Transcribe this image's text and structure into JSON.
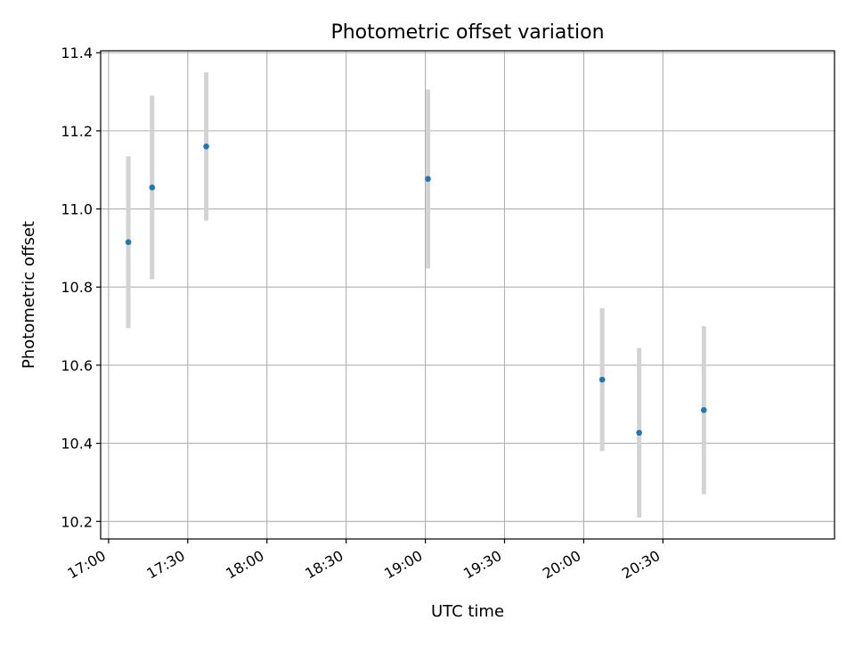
{
  "chart_data": {
    "type": "scatter",
    "title": "Photometric offset variation",
    "xlabel": "UTC time",
    "ylabel": "Photometric offset",
    "xlim": [
      "16:57",
      "21:35"
    ],
    "ylim": [
      10.155,
      11.405
    ],
    "x_ticks": [
      "17:00",
      "17:30",
      "18:00",
      "18:30",
      "19:00",
      "19:30",
      "20:00",
      "20:30"
    ],
    "y_ticks": [
      "10.2",
      "10.4",
      "10.6",
      "10.8",
      "11.0",
      "11.2",
      "11.4"
    ],
    "grid": true,
    "colors": {
      "point": "#1f77b4",
      "errorbar": "#d3d3d3",
      "grid": "#b0b0b0"
    },
    "points": [
      {
        "x": "17:07:30",
        "y": 10.915,
        "yerr_low": 10.695,
        "yerr_high": 11.135
      },
      {
        "x": "17:16:30",
        "y": 11.055,
        "yerr_low": 10.82,
        "yerr_high": 11.29
      },
      {
        "x": "17:37:00",
        "y": 11.16,
        "yerr_low": 10.97,
        "yerr_high": 11.35
      },
      {
        "x": "19:01:00",
        "y": 11.077,
        "yerr_low": 10.848,
        "yerr_high": 11.306
      },
      {
        "x": "20:07:00",
        "y": 10.563,
        "yerr_low": 10.38,
        "yerr_high": 10.746
      },
      {
        "x": "20:21:00",
        "y": 10.427,
        "yerr_low": 10.21,
        "yerr_high": 10.644
      },
      {
        "x": "20:45:30",
        "y": 10.485,
        "yerr_low": 10.27,
        "yerr_high": 10.7
      }
    ]
  }
}
